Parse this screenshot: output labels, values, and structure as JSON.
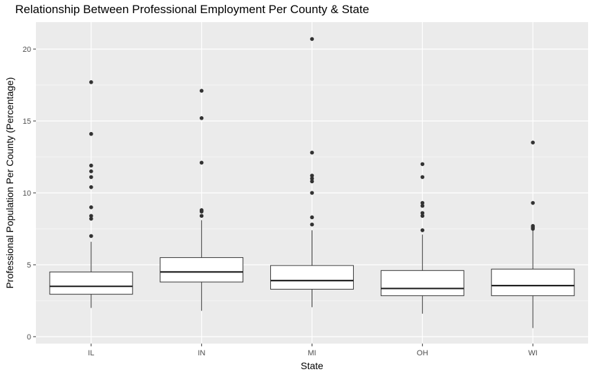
{
  "chart_data": {
    "type": "boxplot",
    "title": "Relationship Between Professional Employment Per County & State",
    "xlabel": "State",
    "ylabel": "Professional Population Per County (Percentage)",
    "categories": [
      "IL",
      "IN",
      "MI",
      "OH",
      "WI"
    ],
    "ylim": [
      -0.6,
      22
    ],
    "yticks": [
      0,
      5,
      10,
      15,
      20
    ],
    "grid": true,
    "background": "#EBEBEB",
    "boxes": [
      {
        "category": "IL",
        "whisker_low": 2.0,
        "q1": 2.95,
        "median": 3.5,
        "q3": 4.5,
        "whisker_high": 6.6,
        "outliers": [
          7.0,
          8.2,
          8.4,
          9.0,
          10.4,
          11.1,
          11.5,
          11.9,
          14.1,
          17.7
        ]
      },
      {
        "category": "IN",
        "whisker_low": 1.8,
        "q1": 3.8,
        "median": 4.5,
        "q3": 5.5,
        "whisker_high": 8.1,
        "outliers": [
          8.4,
          8.7,
          8.8,
          12.1,
          15.2,
          17.1
        ]
      },
      {
        "category": "MI",
        "whisker_low": 2.05,
        "q1": 3.3,
        "median": 3.9,
        "q3": 4.95,
        "whisker_high": 7.4,
        "outliers": [
          7.8,
          8.3,
          10.0,
          10.8,
          11.0,
          11.2,
          12.8,
          20.7
        ]
      },
      {
        "category": "OH",
        "whisker_low": 1.6,
        "q1": 2.85,
        "median": 3.35,
        "q3": 4.6,
        "whisker_high": 7.1,
        "outliers": [
          7.4,
          8.4,
          8.6,
          9.1,
          9.3,
          11.1,
          12.0
        ]
      },
      {
        "category": "WI",
        "whisker_low": 0.6,
        "q1": 2.85,
        "median": 3.55,
        "q3": 4.7,
        "whisker_high": 7.4,
        "outliers": [
          7.5,
          7.6,
          7.7,
          9.3,
          13.5
        ]
      }
    ]
  }
}
